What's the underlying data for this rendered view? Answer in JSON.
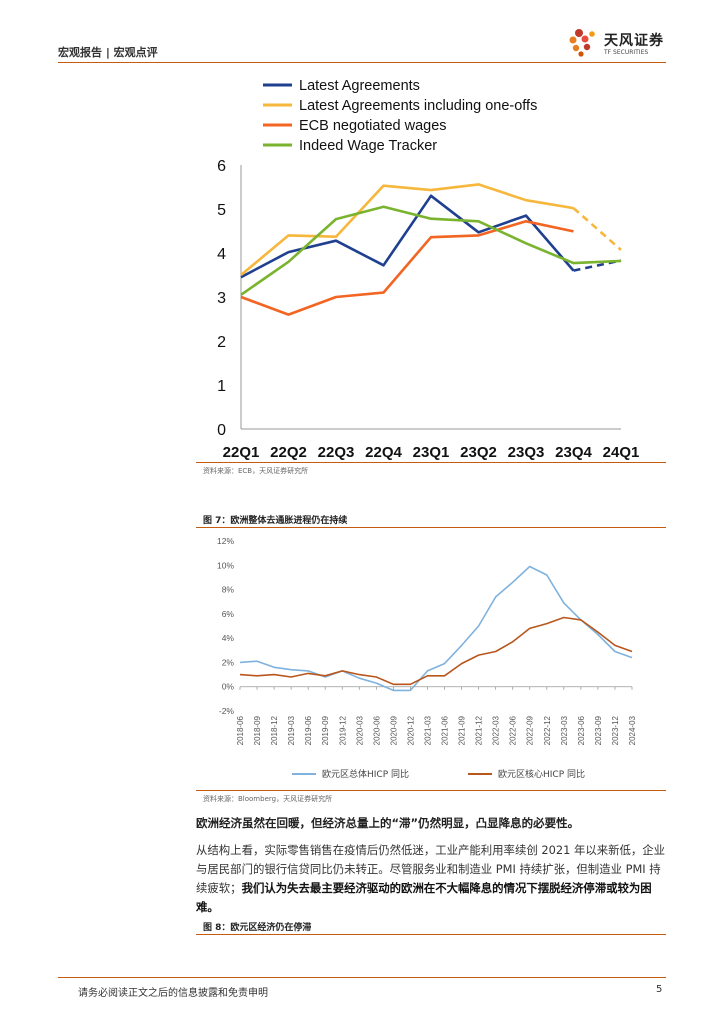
{
  "header": {
    "title": "宏观报告 | 宏观点评"
  },
  "logo": {
    "cn": "天风证券",
    "en": "TF SECURITIES"
  },
  "chart_data": [
    {
      "type": "line",
      "categories": [
        "22Q1",
        "22Q2",
        "22Q3",
        "22Q4",
        "23Q1",
        "23Q2",
        "23Q3",
        "23Q4",
        "24Q1"
      ],
      "ylim": [
        0,
        6
      ],
      "yticks": [
        "0",
        "1",
        "2",
        "3",
        "4",
        "5",
        "6"
      ],
      "legend_position": "top",
      "grid": false,
      "series": [
        {
          "name": "Latest Agreements",
          "color": "#1f3f8f",
          "values": [
            3.45,
            4.02,
            4.28,
            3.72,
            5.3,
            4.47,
            4.85,
            3.6,
            3.83
          ],
          "dashed_from": 7
        },
        {
          "name": "Latest Agreements including one-offs",
          "color": "#f6b73c",
          "values": [
            3.5,
            4.4,
            4.37,
            5.53,
            5.43,
            5.56,
            5.2,
            5.02,
            4.07
          ],
          "dashed_from": 7
        },
        {
          "name": "ECB negotiated wages",
          "color": "#f26522",
          "values": [
            3.0,
            2.6,
            3.0,
            3.1,
            4.36,
            4.4,
            4.72,
            4.49,
            null
          ]
        },
        {
          "name": "Indeed Wage Tracker",
          "color": "#7ab32e",
          "values": [
            3.05,
            3.8,
            4.77,
            5.05,
            4.78,
            4.72,
            4.22,
            3.77,
            3.82
          ]
        }
      ]
    },
    {
      "type": "line",
      "categories": [
        "2018-06",
        "2018-09",
        "2018-12",
        "2019-03",
        "2019-06",
        "2019-09",
        "2019-12",
        "2020-03",
        "2020-06",
        "2020-09",
        "2020-12",
        "2021-03",
        "2021-06",
        "2021-09",
        "2021-12",
        "2022-03",
        "2022-06",
        "2022-09",
        "2022-12",
        "2023-03",
        "2023-06",
        "2023-09",
        "2023-12",
        "2024-03"
      ],
      "ylim": [
        -2,
        12
      ],
      "yticks": [
        "-2%",
        "0%",
        "2%",
        "4%",
        "6%",
        "8%",
        "10%",
        "12%"
      ],
      "legend_position": "bottom",
      "grid": false,
      "series": [
        {
          "name": "欧元区总体HICP 同比",
          "color": "#7fb2de",
          "values": [
            2.0,
            2.1,
            1.6,
            1.4,
            1.3,
            0.8,
            1.3,
            0.7,
            0.3,
            -0.3,
            -0.3,
            1.3,
            1.9,
            3.4,
            5.0,
            7.4,
            8.6,
            9.9,
            9.2,
            6.9,
            5.5,
            4.3,
            2.9,
            2.4
          ]
        },
        {
          "name": "欧元区核心HICP 同比",
          "color": "#b8561d",
          "values": [
            1.0,
            0.9,
            1.0,
            0.8,
            1.1,
            0.9,
            1.3,
            1.0,
            0.8,
            0.2,
            0.2,
            0.9,
            0.9,
            1.9,
            2.6,
            2.9,
            3.7,
            4.8,
            5.2,
            5.7,
            5.5,
            4.5,
            3.4,
            2.9
          ]
        }
      ]
    }
  ],
  "source1": "资料来源：ECB，天风证券研究所",
  "fig7_title": "图 7：欧洲整体去通胀进程仍在持续",
  "source2": "资料来源：Bloomberg，天风证券研究所",
  "para_bold": "欧洲经济虽然在回暖，但经济总量上的“滞”仍然明显，凸显降息的必要性。",
  "para_normal": "从结构上看，实际零售销售在疫情后仍然低迷，工业产能利用率续创 2021 年以来新低，企业与居民部门的银行信贷同比仍未转正。尽管服务业和制造业 PMI 持续扩张，但制造业 PMI 持续疲软；",
  "para_emph": "我们认为失去最主要经济驱动的欧洲在不大幅降息的情况下摆脱经济停滞或较为困难。",
  "fig8_title": "图 8：欧元区经济仍在停滞",
  "footer": {
    "disclaimer": "请务必阅读正文之后的信息披露和免责申明",
    "page": "5"
  }
}
